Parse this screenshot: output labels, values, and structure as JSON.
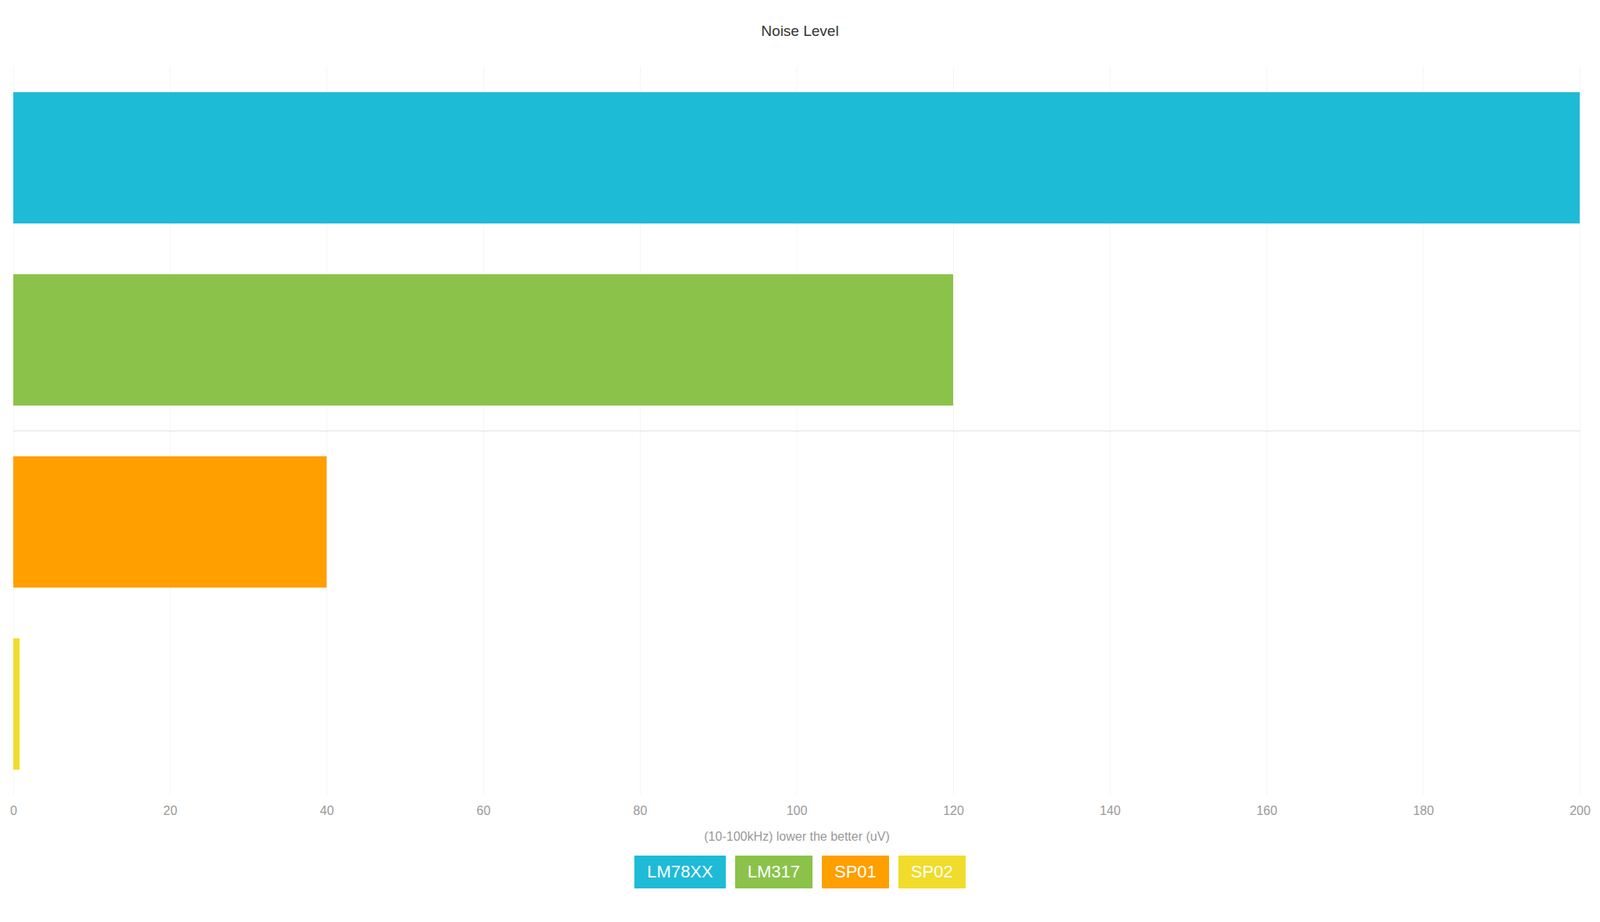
{
  "chart_data": {
    "type": "bar",
    "title": "Noise Level",
    "orientation": "horizontal",
    "categories": [
      "LM78XX",
      "LM317",
      "SP01",
      "SP02"
    ],
    "values": [
      200,
      120,
      40,
      0.8
    ],
    "colors": [
      "#1ebbd7",
      "#8bc34a",
      "#ff9f00",
      "#f0dc2a"
    ],
    "xlabel": "(10-100kHz) lower the better (uV)",
    "xlim": [
      0,
      200
    ],
    "xticks": [
      0,
      20,
      40,
      60,
      80,
      100,
      120,
      140,
      160,
      180,
      200
    ],
    "grid": true,
    "legend": "bottom",
    "tick_labels": "x"
  }
}
